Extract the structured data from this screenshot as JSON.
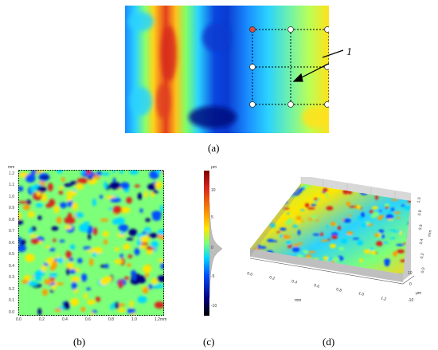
{
  "figure": {
    "panel_a": {
      "label": "(a)",
      "annotation_number": "1"
    },
    "panel_b": {
      "label": "(b)",
      "y_unit": "mm",
      "x_unit": "mm",
      "y_ticks": [
        "1.2",
        "1.1",
        "1.0",
        "0.9",
        "0.8",
        "0.7",
        "0.6",
        "0.5",
        "0.4",
        "0.3",
        "0.2",
        "0.1",
        "0.0"
      ],
      "x_ticks": [
        "0.0",
        "0.2",
        "0.4",
        "0.6",
        "0.8",
        "1.0",
        "1.2"
      ]
    },
    "panel_c": {
      "label": "(c)",
      "unit": "μm",
      "ticks": [
        "10",
        "5",
        "0",
        "-5",
        "-10"
      ]
    },
    "panel_d": {
      "label": "(d)",
      "x_unit": "mm",
      "z_unit": "μm",
      "y_unit": "mm",
      "x_ticks": [
        "0.0",
        "0.2",
        "0.4",
        "0.6",
        "0.8",
        "1.0",
        "1.2"
      ],
      "z_ticks": [
        "10",
        "0",
        "-10"
      ],
      "y_ticks": [
        "0.0",
        "0.2",
        "0.4",
        "0.6",
        "0.8",
        "1.0"
      ]
    },
    "colors": {
      "jet_dark_blue": "#00007f",
      "jet_blue": "#0050ff",
      "jet_cyan": "#00d8ff",
      "jet_green": "#7dff7a",
      "jet_yellow": "#ffe600",
      "jet_red": "#d7261e",
      "dashed_box": "#000000",
      "marker_fill": "#ffffff",
      "marker_red": "#e04a3a"
    }
  }
}
